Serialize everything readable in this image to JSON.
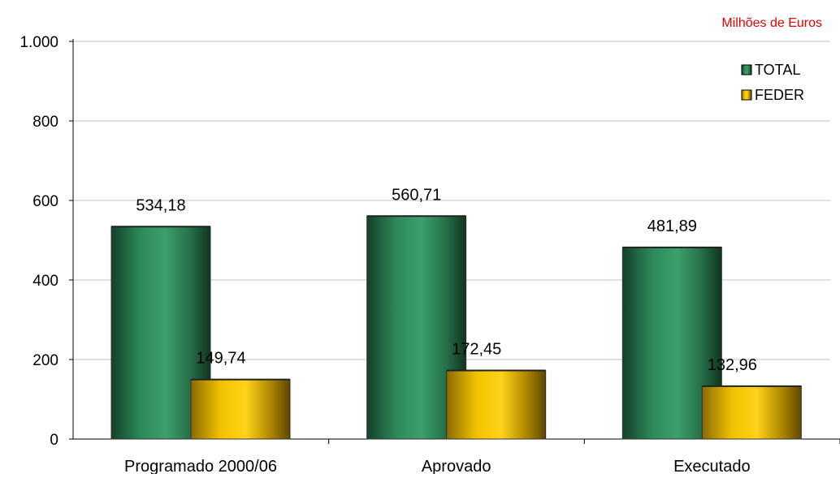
{
  "chart_data": {
    "type": "bar",
    "title": "",
    "unit_label": "Milhões de Euros",
    "xlabel": "",
    "ylabel": "",
    "categories": [
      "Programado 2000/06",
      "Aprovado",
      "Executado"
    ],
    "series": [
      {
        "name": "TOTAL",
        "values": [
          534.18,
          560.71,
          481.89
        ],
        "labels": [
          "534,18",
          "560,71",
          "481,89"
        ]
      },
      {
        "name": "FEDER",
        "values": [
          149.74,
          172.45,
          132.96
        ],
        "labels": [
          "149,74",
          "172,45",
          "132,96"
        ]
      }
    ],
    "ylim": [
      0,
      1000
    ],
    "yticks": [
      0,
      200,
      400,
      600,
      800,
      1000
    ],
    "ytick_labels": [
      "0",
      "200",
      "400",
      "600",
      "800",
      "1.000"
    ],
    "grid": true,
    "legend_position": "top-right",
    "colors": {
      "TOTAL": "#2e8a5a",
      "FEDER": "#f2c200",
      "unit_label": "#e00000",
      "grid": "#c0c0c0",
      "axis": "#000000"
    }
  }
}
